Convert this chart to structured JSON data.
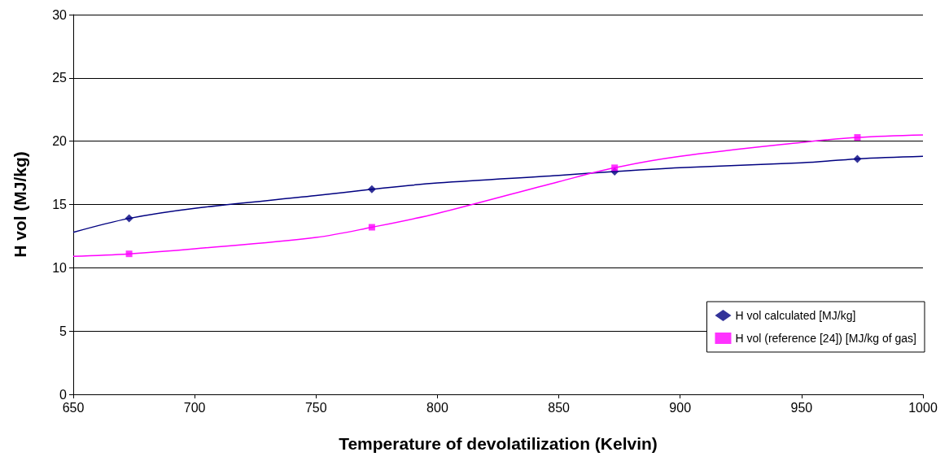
{
  "chart_data": {
    "type": "line",
    "xlabel": "Temperature of devolatilization (Kelvin)",
    "ylabel": "H vol (MJ/kg)",
    "xlim": [
      650,
      1000
    ],
    "xticks": [
      650,
      700,
      750,
      800,
      850,
      900,
      950,
      1000
    ],
    "ylim": [
      0,
      30
    ],
    "yticks": [
      0,
      5,
      10,
      15,
      20,
      25,
      30
    ],
    "grid": "y",
    "legend": "right",
    "series": [
      {
        "name": "H vol calculated [MJ/kg]",
        "type": "scatter",
        "marker": "diamond",
        "color": "#000080",
        "x": [
          673,
          773,
          873,
          973
        ],
        "values": [
          13.9,
          16.2,
          17.6,
          18.6
        ]
      },
      {
        "name": "H vol (reference [24]) [MJ/kg of gas]",
        "type": "scatter",
        "marker": "square",
        "color": "#ff00ff",
        "x": [
          673,
          773,
          873,
          973
        ],
        "values": [
          11.1,
          13.2,
          17.9,
          20.3
        ]
      },
      {
        "type": "line",
        "marker": "none",
        "color": "#000080",
        "x": [
          650,
          673,
          700,
          750,
          773,
          800,
          850,
          873,
          900,
          950,
          973,
          1000
        ],
        "values": [
          12.8,
          13.9,
          14.7,
          15.7,
          16.2,
          16.7,
          17.3,
          17.6,
          17.9,
          18.3,
          18.6,
          18.8
        ]
      },
      {
        "type": "line",
        "marker": "none",
        "color": "#ff00ff",
        "x": [
          650,
          673,
          700,
          750,
          773,
          800,
          850,
          873,
          900,
          950,
          973,
          1000
        ],
        "values": [
          10.9,
          11.1,
          11.5,
          12.4,
          13.2,
          14.3,
          16.8,
          17.9,
          18.8,
          19.9,
          20.3,
          20.5
        ]
      }
    ]
  }
}
